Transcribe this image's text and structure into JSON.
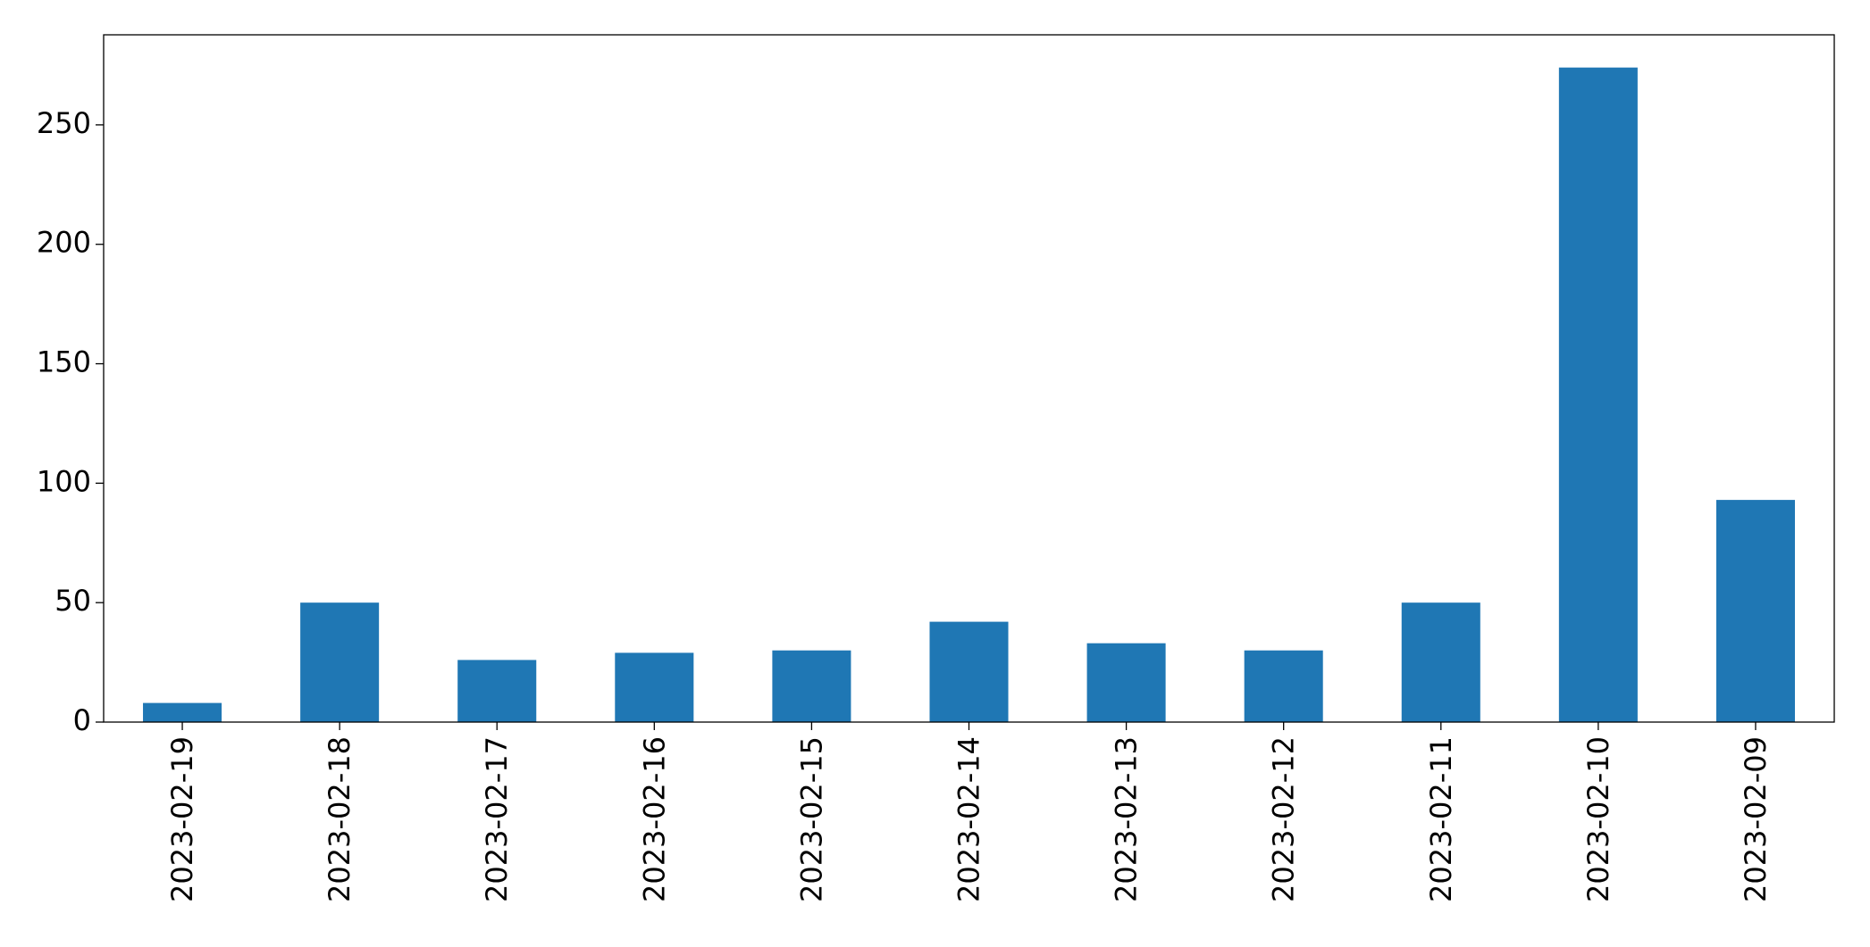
{
  "chart_data": {
    "type": "bar",
    "categories": [
      "2023-02-19",
      "2023-02-18",
      "2023-02-17",
      "2023-02-16",
      "2023-02-15",
      "2023-02-14",
      "2023-02-13",
      "2023-02-12",
      "2023-02-11",
      "2023-02-10",
      "2023-02-09"
    ],
    "values": [
      8,
      50,
      26,
      29,
      30,
      42,
      33,
      30,
      50,
      274,
      93
    ],
    "color": "#1f77b4",
    "ylim": [
      0,
      287.7
    ],
    "yticks": [
      0,
      50,
      100,
      150,
      200,
      250
    ],
    "grid": false
  }
}
